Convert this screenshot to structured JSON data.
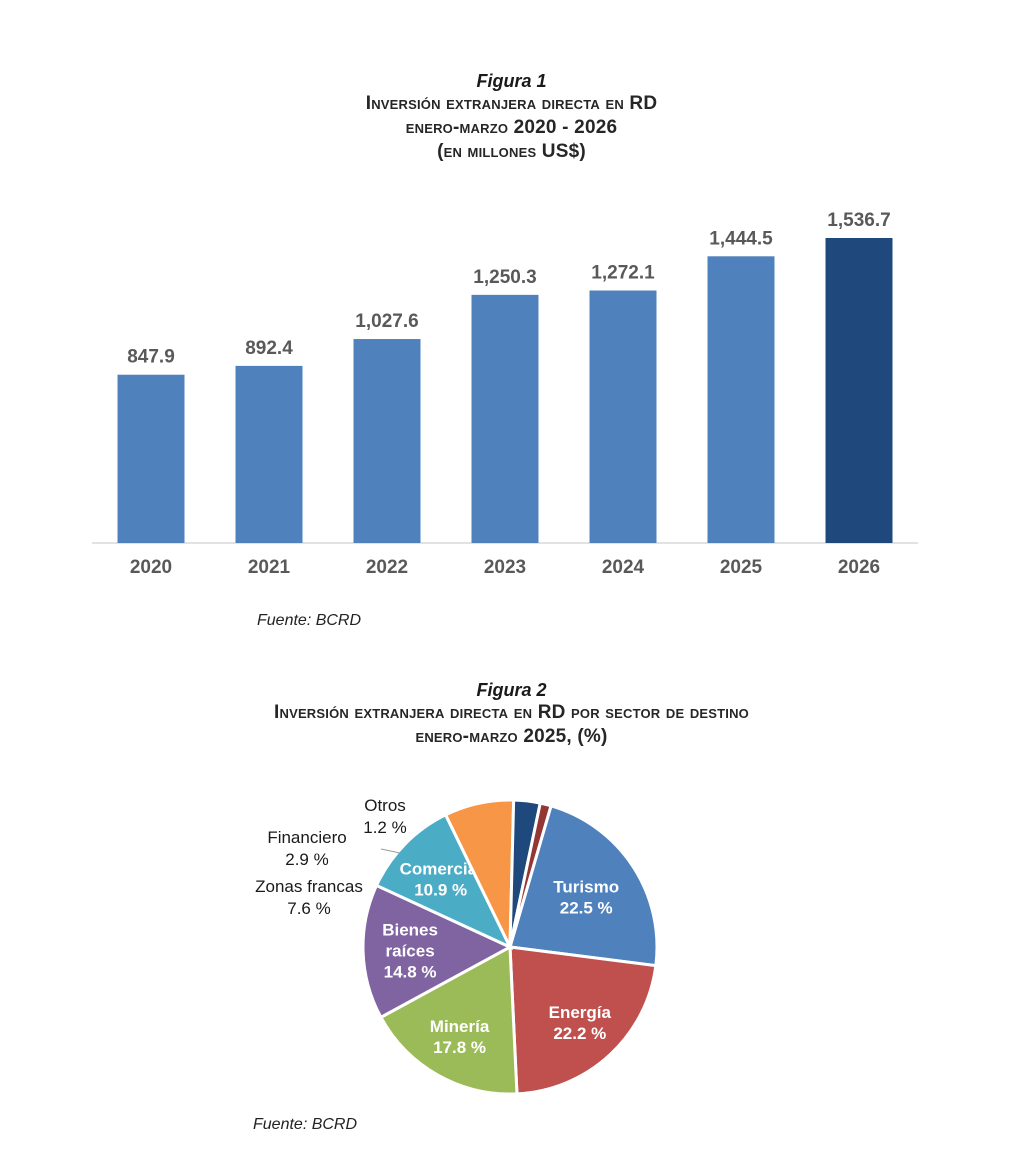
{
  "figure1": {
    "label": "Figura 1",
    "title_lines": [
      "Inversión extranjera directa en RD",
      "enero-marzo 2020 - 2026",
      "(en millones US$)"
    ],
    "source": "Fuente: BCRD"
  },
  "figure2": {
    "label": "Figura 2",
    "title_lines": [
      "Inversión extranjera directa en RD por sector de destino",
      "enero-marzo 2025, (%)"
    ],
    "source": "Fuente: BCRD"
  },
  "chart_data": [
    {
      "type": "bar",
      "categories": [
        "2020",
        "2021",
        "2022",
        "2023",
        "2024",
        "2025",
        "2026"
      ],
      "values": [
        847.9,
        892.4,
        1027.6,
        1250.3,
        1272.1,
        1444.5,
        1536.7
      ],
      "value_labels": [
        "847.9",
        "892.4",
        "1,027.6",
        "1,250.3",
        "1,272.1",
        "1,444.5",
        "1,536.7"
      ],
      "colors": [
        "#4f81bd",
        "#4f81bd",
        "#4f81bd",
        "#4f81bd",
        "#4f81bd",
        "#4f81bd",
        "#1f497d"
      ],
      "ylim": [
        0,
        1536.7
      ],
      "grid": false,
      "legend": "none"
    },
    {
      "type": "pie",
      "slices": [
        {
          "label": "Turismo",
          "value_label": "22.5 %",
          "value": 22.5,
          "color": "#4f81bd",
          "label_inside": true
        },
        {
          "label": "Energía",
          "value_label": "22.2 %",
          "value": 22.2,
          "color": "#c0504d",
          "label_inside": true
        },
        {
          "label": "Minería",
          "value_label": "17.8 %",
          "value": 17.8,
          "color": "#9bbb59",
          "label_inside": true
        },
        {
          "label": "Bienes raíces",
          "value_label": "14.8 %",
          "value": 14.8,
          "color": "#8064a2",
          "label_inside": true
        },
        {
          "label": "Comercial",
          "value_label": "10.9 %",
          "value": 10.9,
          "color": "#4bacc6",
          "label_inside": true
        },
        {
          "label": "Zonas francas",
          "value_label": "7.6 %",
          "value": 7.6,
          "color": "#f79646",
          "label_inside": false
        },
        {
          "label": "Financiero",
          "value_label": "2.9 %",
          "value": 2.9,
          "color": "#1f497d",
          "label_inside": false
        },
        {
          "label": "Otros",
          "value_label": "1.2 %",
          "value": 1.2,
          "color": "#943634",
          "label_inside": false
        }
      ],
      "legend": "none"
    }
  ]
}
